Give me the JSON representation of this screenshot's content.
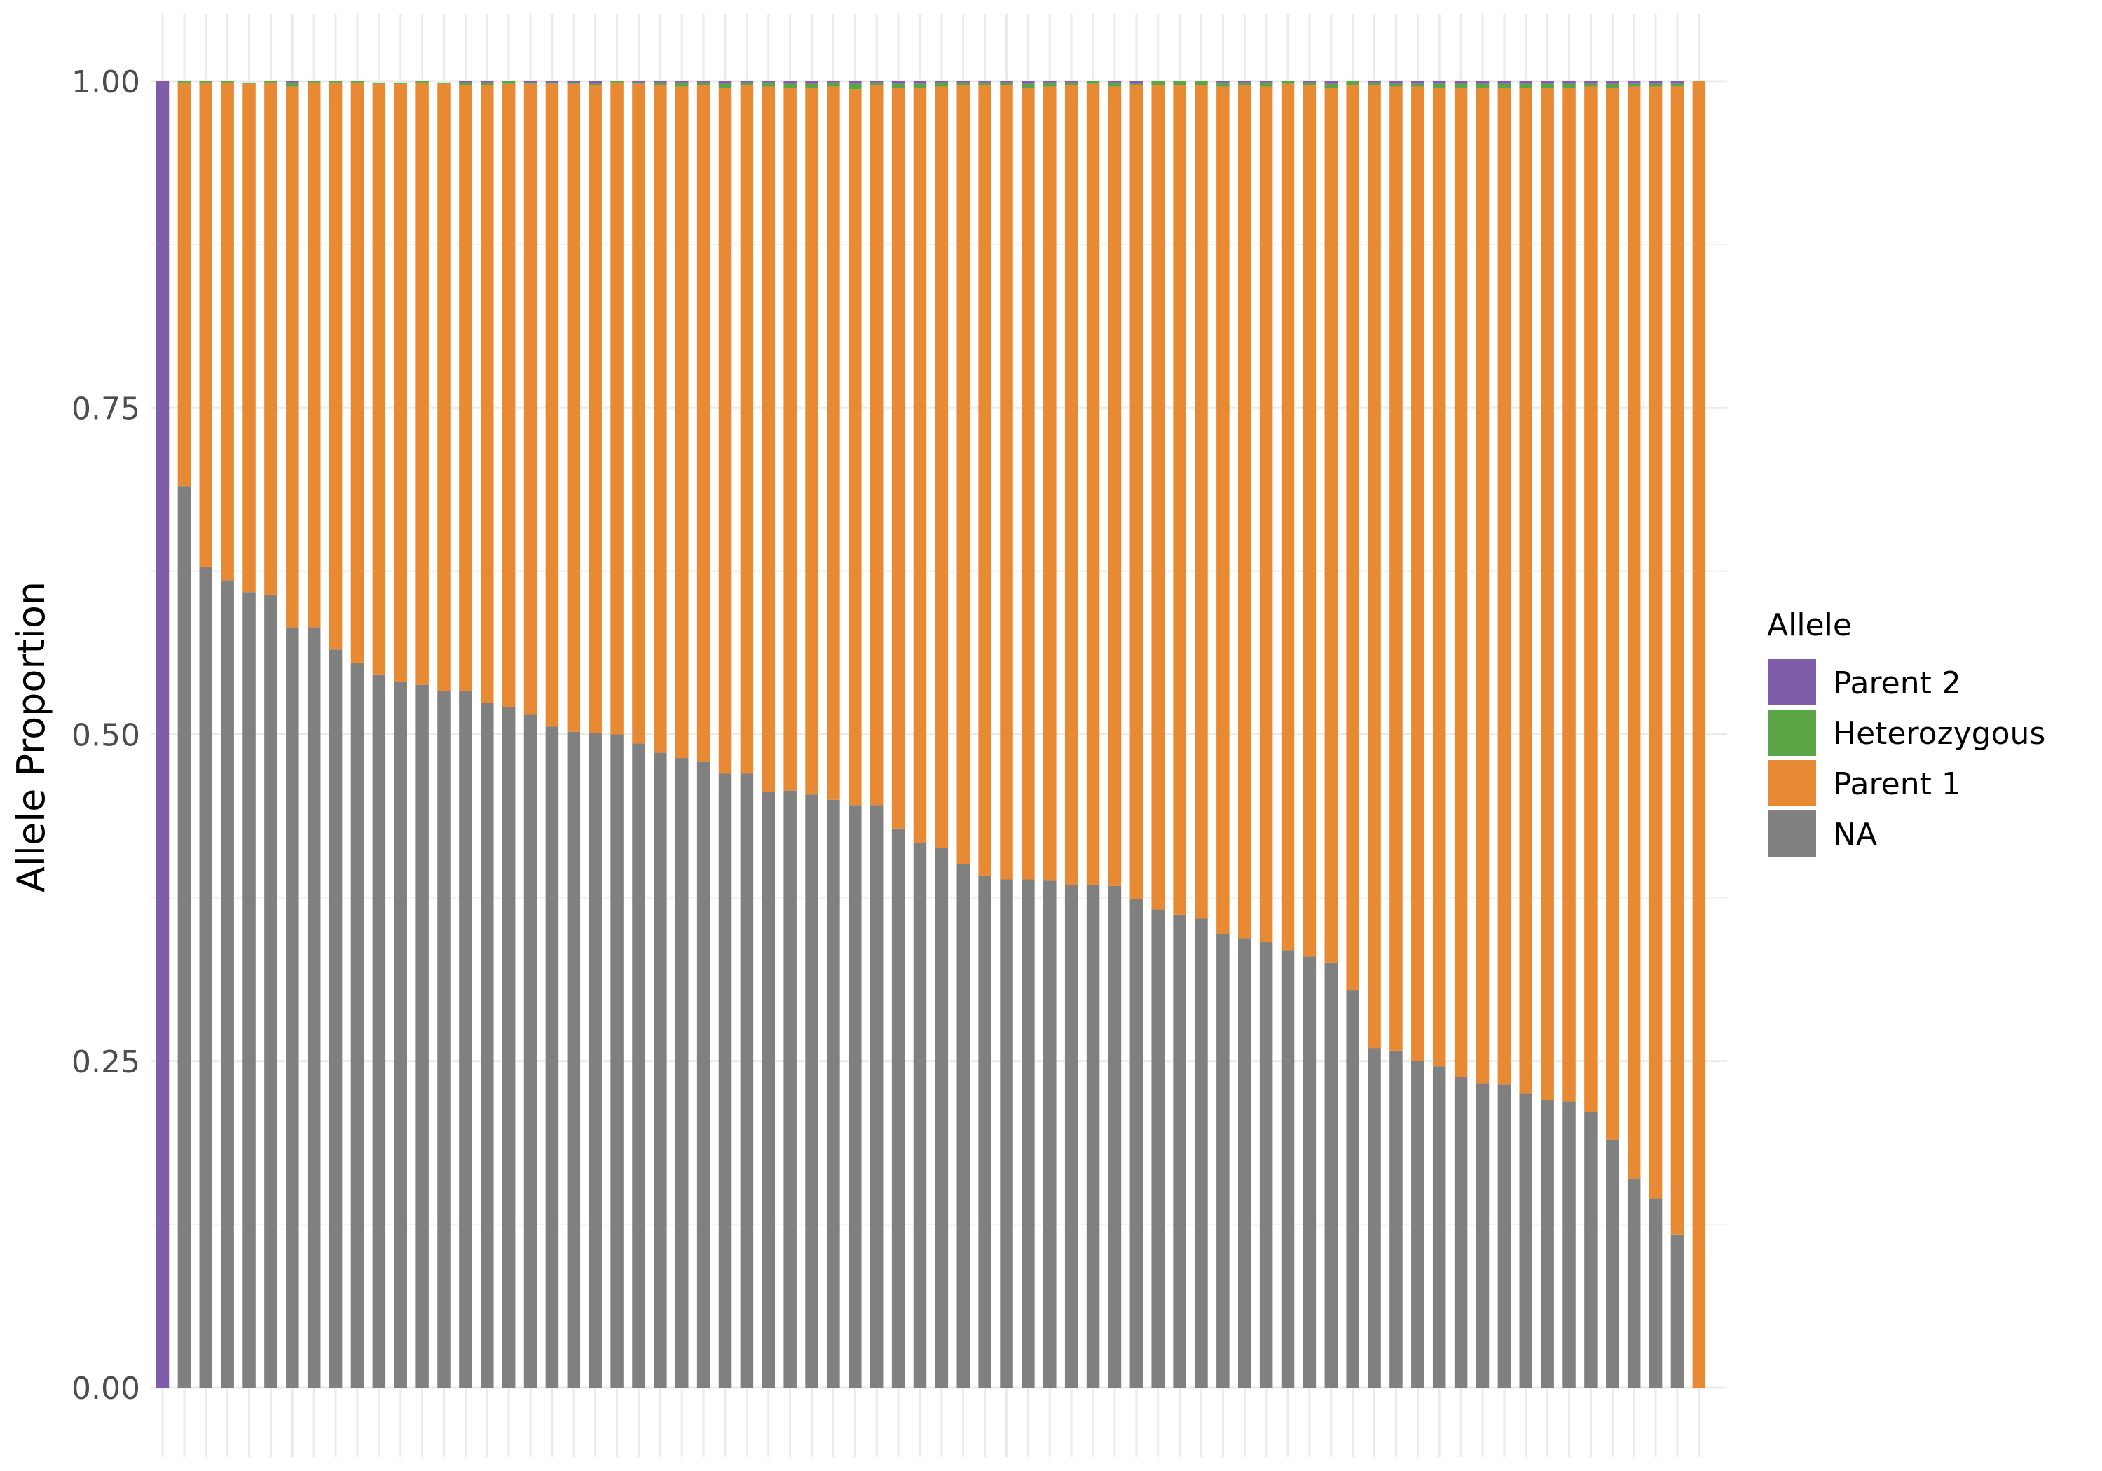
{
  "chart_data": {
    "type": "bar",
    "stacked": true,
    "normalized": true,
    "title": "",
    "xlabel": "",
    "ylabel": "Allele Proportion",
    "ylim": [
      0,
      1
    ],
    "yticks": [
      "0.00",
      "0.25",
      "0.50",
      "0.75",
      "1.00"
    ],
    "grid": true,
    "x_tick_labels_shown": false,
    "legend": {
      "title": "Allele",
      "position": "right",
      "entries": [
        "Parent 2",
        "Heterozygous",
        "Parent 1",
        "NA"
      ]
    },
    "colors": {
      "Parent 2": "#7f5da9",
      "Heterozygous": "#5aa545",
      "Parent 1": "#e88a33",
      "NA": "#808080"
    },
    "bar_count": 72,
    "series": [
      {
        "name": "NA",
        "values": [
          0,
          0.69,
          0.628,
          0.618,
          0.609,
          0.607,
          0.582,
          0.582,
          0.565,
          0.555,
          0.546,
          0.54,
          0.538,
          0.533,
          0.533,
          0.524,
          0.521,
          0.515,
          0.506,
          0.502,
          0.501,
          0.5,
          0.493,
          0.486,
          0.482,
          0.479,
          0.47,
          0.47,
          0.456,
          0.457,
          0.454,
          0.45,
          0.446,
          0.446,
          0.428,
          0.417,
          0.413,
          0.401,
          0.392,
          0.389,
          0.389,
          0.388,
          0.385,
          0.385,
          0.384,
          0.374,
          0.366,
          0.362,
          0.359,
          0.347,
          0.344,
          0.341,
          0.335,
          0.33,
          0.325,
          0.304,
          0.26,
          0.258,
          0.25,
          0.246,
          0.238,
          0.233,
          0.232,
          0.225,
          0.22,
          0.219,
          0.211,
          0.19,
          0.16,
          0.145,
          0.117,
          0
        ]
      },
      {
        "name": "Parent 1",
        "values": [
          0,
          0.309,
          0.371,
          0.381,
          0.389,
          0.392,
          0.414,
          0.417,
          0.434,
          0.444,
          0.452,
          0.458,
          0.461,
          0.465,
          0.464,
          0.473,
          0.477,
          0.483,
          0.492,
          0.496,
          0.496,
          0.499,
          0.505,
          0.511,
          0.514,
          0.518,
          0.525,
          0.527,
          0.54,
          0.538,
          0.541,
          0.546,
          0.548,
          0.551,
          0.567,
          0.578,
          0.583,
          0.596,
          0.605,
          0.608,
          0.606,
          0.608,
          0.612,
          0.613,
          0.612,
          0.623,
          0.631,
          0.635,
          0.638,
          0.649,
          0.653,
          0.655,
          0.663,
          0.667,
          0.67,
          0.693,
          0.737,
          0.738,
          0.746,
          0.749,
          0.757,
          0.762,
          0.763,
          0.77,
          0.775,
          0.776,
          0.785,
          0.805,
          0.836,
          0.851,
          0.879,
          1.0
        ]
      },
      {
        "name": "Heterozygous",
        "values": [
          0,
          0.001,
          0.001,
          0.001,
          0.001,
          0.001,
          0.003,
          0.001,
          0.001,
          0.001,
          0.001,
          0.001,
          0.001,
          0.001,
          0.002,
          0.002,
          0.002,
          0.001,
          0.001,
          0.001,
          0.001,
          0.001,
          0.001,
          0.002,
          0.003,
          0.002,
          0.003,
          0.002,
          0.003,
          0.003,
          0.003,
          0.003,
          0.004,
          0.002,
          0.003,
          0.003,
          0.003,
          0.002,
          0.002,
          0.002,
          0.003,
          0.003,
          0.002,
          0.002,
          0.003,
          0.001,
          0.003,
          0.003,
          0.003,
          0.003,
          0.002,
          0.003,
          0.002,
          0.002,
          0.003,
          0.003,
          0.002,
          0.002,
          0.002,
          0.003,
          0.003,
          0.003,
          0.003,
          0.003,
          0.003,
          0.003,
          0.002,
          0.003,
          0.002,
          0.002,
          0.002,
          0
        ]
      },
      {
        "name": "Parent 2",
        "values": [
          1.0,
          0,
          0,
          0,
          0,
          0,
          0.001,
          0,
          0,
          0,
          0,
          0,
          0,
          0,
          0.001,
          0.001,
          0,
          0.001,
          0.001,
          0.001,
          0.002,
          0,
          0.001,
          0.001,
          0.001,
          0.001,
          0.002,
          0.001,
          0.001,
          0.002,
          0.002,
          0.001,
          0.002,
          0.001,
          0.002,
          0.002,
          0.001,
          0.001,
          0.001,
          0.001,
          0.002,
          0.001,
          0.001,
          0,
          0.001,
          0.002,
          0,
          0,
          0,
          0.001,
          0.001,
          0.001,
          0,
          0.001,
          0.002,
          0,
          0.001,
          0.002,
          0.002,
          0.002,
          0.002,
          0.002,
          0.002,
          0.002,
          0.002,
          0.002,
          0.002,
          0.002,
          0.002,
          0.002,
          0.002,
          0
        ]
      }
    ]
  }
}
